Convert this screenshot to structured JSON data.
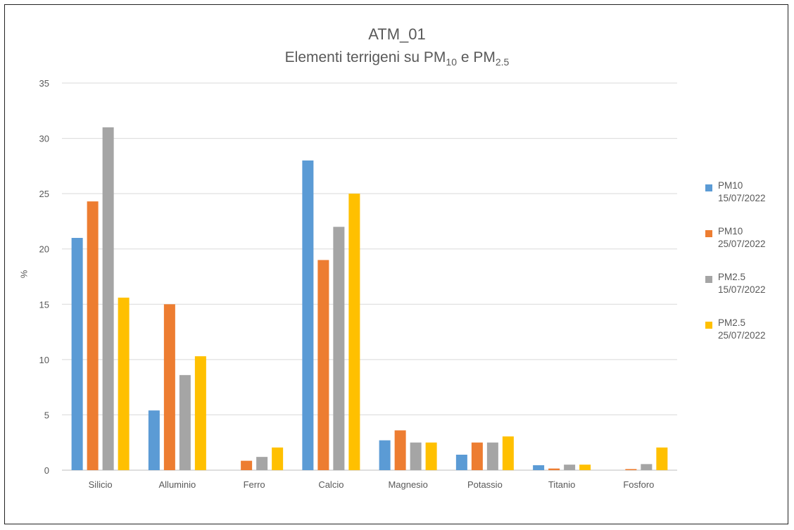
{
  "chart_data": {
    "type": "bar",
    "title": "ATM_01",
    "subtitle_parts": [
      "Elementi terrigeni su PM",
      "10",
      " e PM",
      "2.5"
    ],
    "ylabel": "%",
    "xlabel": "",
    "ylim": [
      0,
      35
    ],
    "yticks": [
      0,
      5,
      10,
      15,
      20,
      25,
      30,
      35
    ],
    "grid": true,
    "legend_position": "right",
    "categories": [
      "Silicio",
      "Alluminio",
      "Ferro",
      "Calcio",
      "Magnesio",
      "Potassio",
      "Titanio",
      "Fosforo"
    ],
    "series": [
      {
        "name": "PM10",
        "date": "15/07/2022",
        "color": "#5B9BD5",
        "values": [
          21,
          5.4,
          0,
          28,
          2.7,
          1.4,
          0.45,
          0
        ]
      },
      {
        "name": "PM10",
        "date": "25/07/2022",
        "color": "#ED7D31",
        "values": [
          24.3,
          15,
          0.85,
          19,
          3.6,
          2.5,
          0.15,
          0.1
        ]
      },
      {
        "name": "PM2.5",
        "date": "15/07/2022",
        "color": "#A5A5A5",
        "values": [
          31,
          8.6,
          1.2,
          22,
          2.5,
          2.5,
          0.5,
          0.55
        ]
      },
      {
        "name": "PM2.5",
        "date": "25/07/2022",
        "color": "#FFC000",
        "values": [
          15.6,
          10.3,
          2.05,
          25,
          2.5,
          3.05,
          0.5,
          2.05
        ]
      }
    ]
  }
}
